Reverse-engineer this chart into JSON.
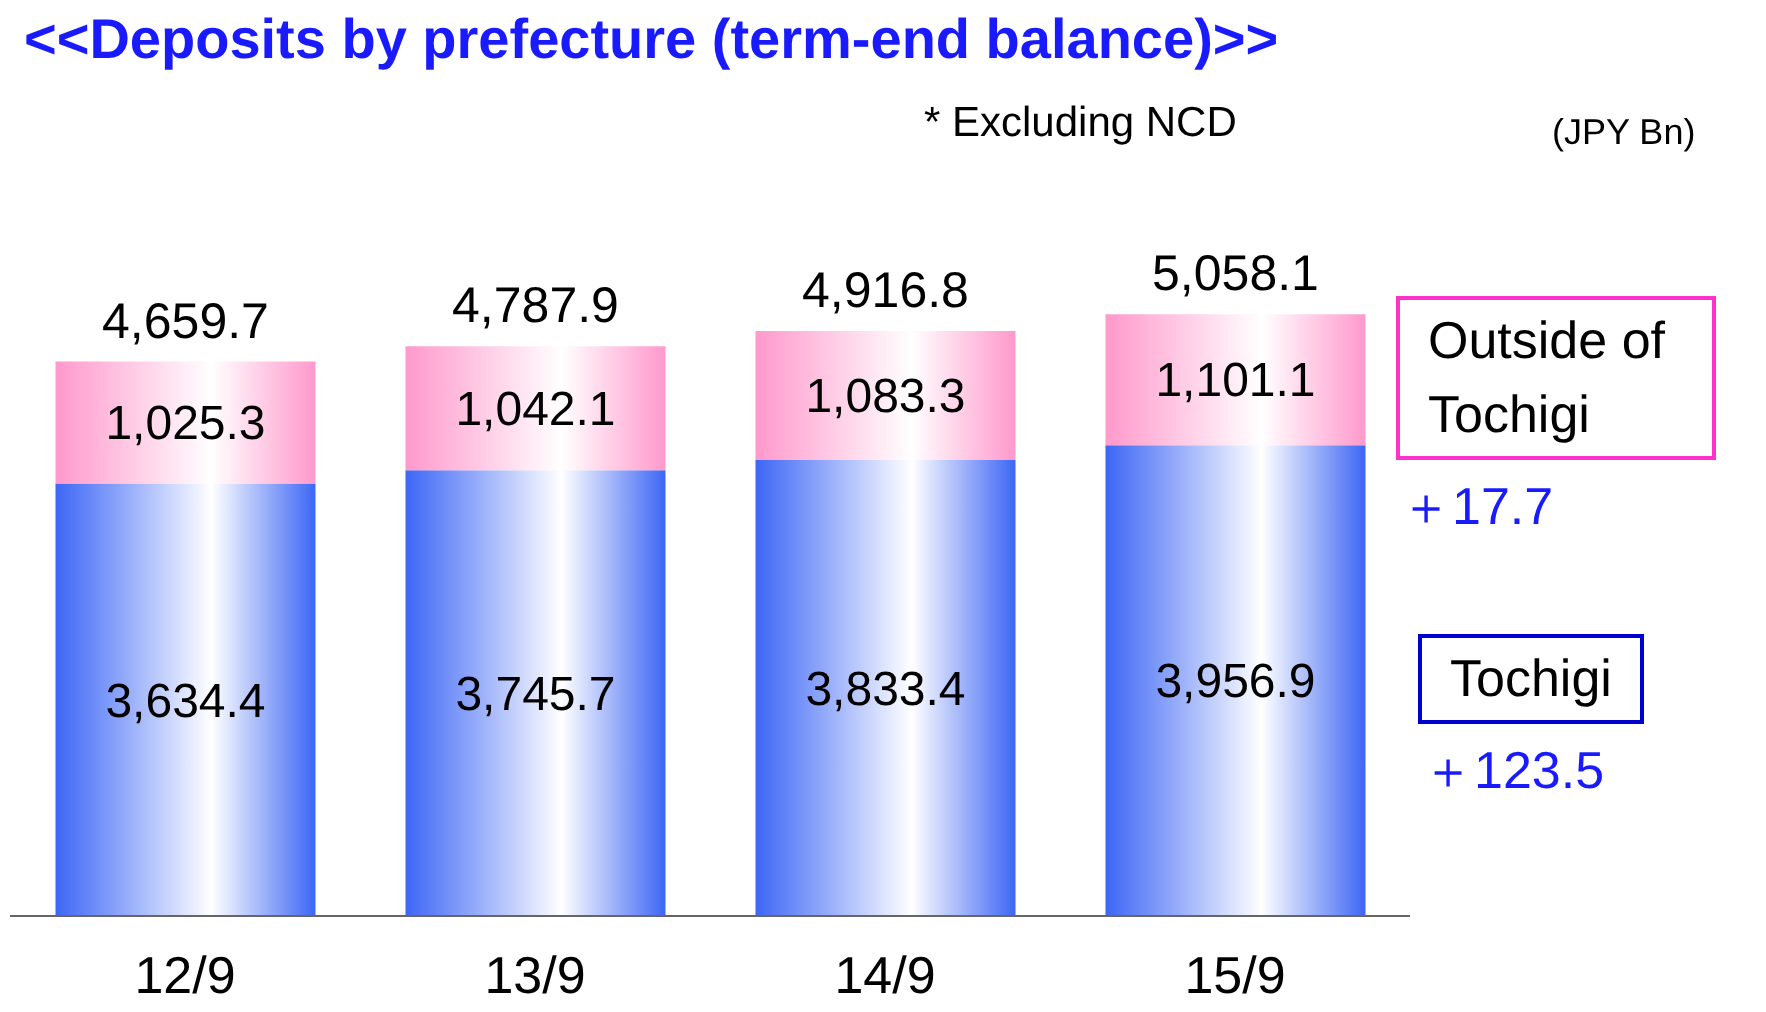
{
  "chart_data": {
    "type": "bar",
    "title": "<<Deposits by prefecture (term-end balance)>>",
    "categories": [
      "12/9",
      "13/9",
      "14/9",
      "15/9"
    ],
    "stacked": true,
    "series": [
      {
        "name": "Tochigi",
        "color": "#3d66f5",
        "values": [
          3634.4,
          3745.7,
          3833.4,
          3956.9
        ],
        "value_labels": [
          "3,634.4",
          "3,745.7",
          "3,833.4",
          "3,956.9"
        ]
      },
      {
        "name": "Outside of Tochigi",
        "color": "#ff99cc",
        "values": [
          1025.3,
          1042.1,
          1083.3,
          1101.1
        ],
        "value_labels": [
          "1,025.3",
          "1,042.1",
          "1,083.3",
          "1,101.1"
        ]
      }
    ],
    "totals": [
      "4,659.7",
      "4,787.9",
      "4,916.8",
      "5,058.1"
    ],
    "legend": "right",
    "annotations": [
      "* Excluding NCD",
      "(JPY Bn)",
      "＋123.5",
      "＋17.7"
    ]
  }
}
